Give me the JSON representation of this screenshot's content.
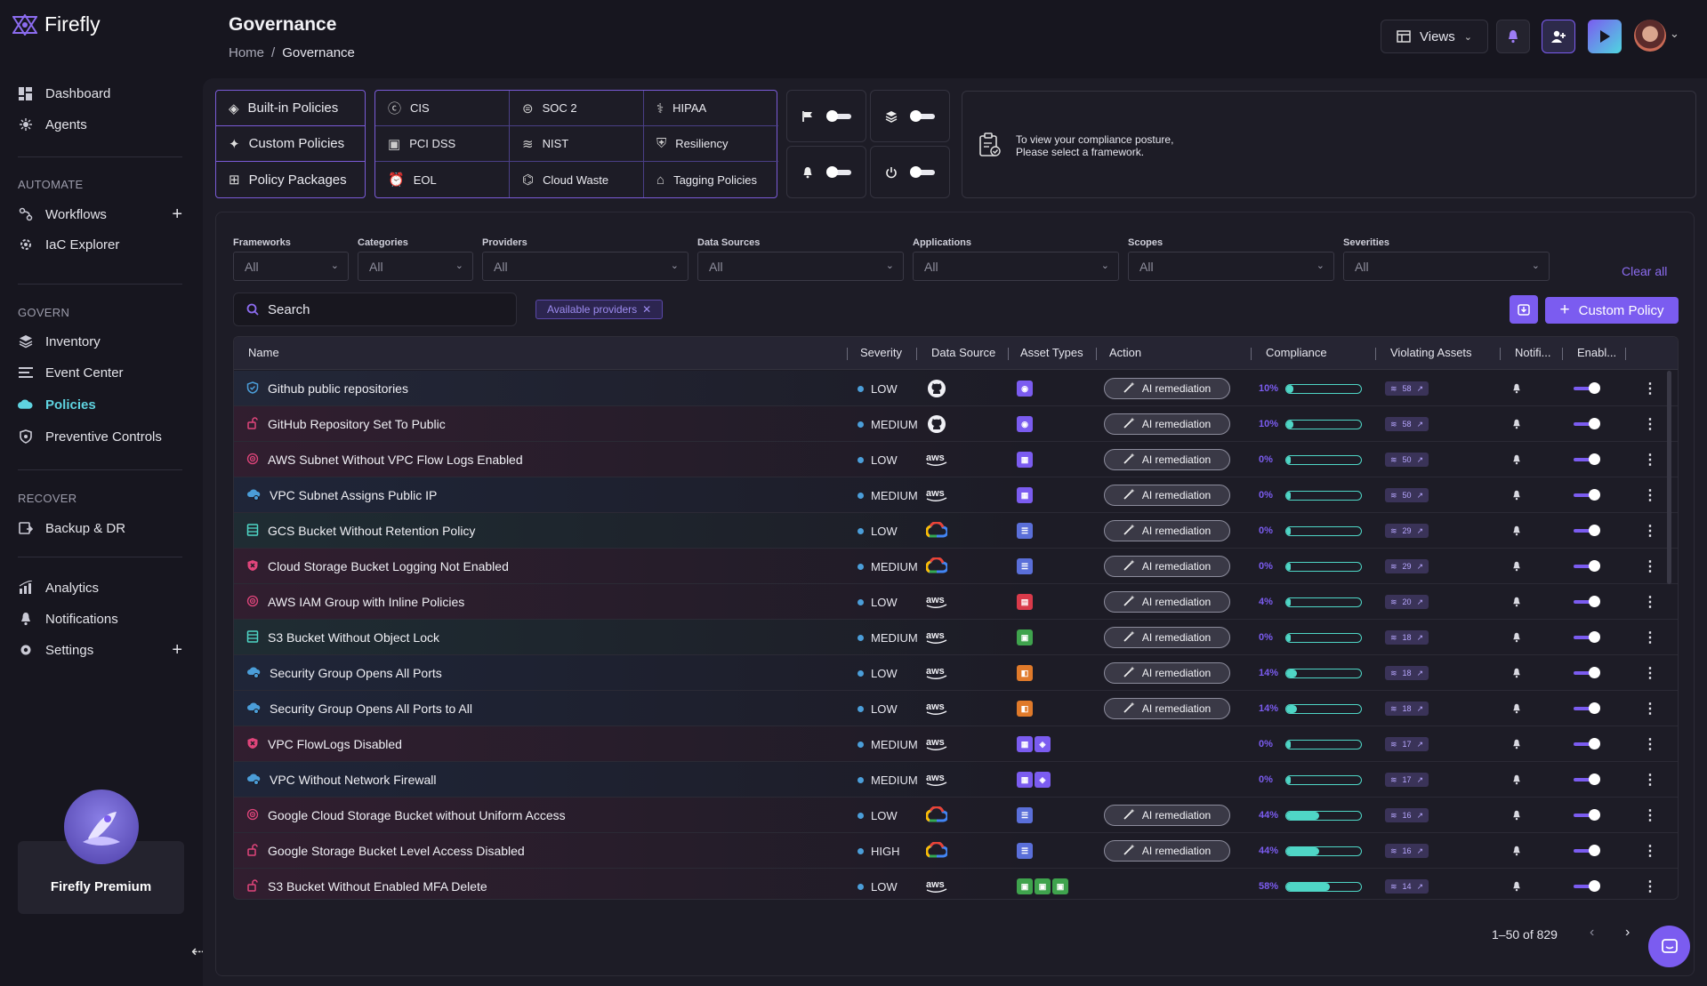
{
  "app": {
    "name": "Firefly"
  },
  "sidebar": {
    "top_items": [
      {
        "label": "Dashboard",
        "icon": "grid-icon"
      },
      {
        "label": "Agents",
        "icon": "agent-icon"
      }
    ],
    "sections": [
      {
        "label": "AUTOMATE",
        "items": [
          {
            "label": "Workflows",
            "icon": "workflow-icon",
            "plus": "+"
          },
          {
            "label": "IaC Explorer",
            "icon": "gear-icon"
          }
        ]
      },
      {
        "label": "GOVERN",
        "items": [
          {
            "label": "Inventory",
            "icon": "layers-icon"
          },
          {
            "label": "Event Center",
            "icon": "list-icon"
          },
          {
            "label": "Policies",
            "icon": "cloud-icon",
            "active": true
          },
          {
            "label": "Preventive Controls",
            "icon": "shield-icon"
          }
        ]
      },
      {
        "label": "RECOVER",
        "items": [
          {
            "label": "Backup & DR",
            "icon": "backup-icon"
          }
        ]
      }
    ],
    "bottom_items": [
      {
        "label": "Analytics",
        "icon": "chart-icon"
      },
      {
        "label": "Notifications",
        "icon": "bell-icon"
      },
      {
        "label": "Settings",
        "icon": "settings-icon",
        "plus": "+"
      }
    ],
    "premium_label": "Firefly Premium"
  },
  "header": {
    "title": "Governance",
    "breadcrumb": [
      "Home",
      "/",
      "Governance"
    ],
    "views_label": "Views"
  },
  "policy_types": [
    {
      "label": "Built-in Policies",
      "icon": "built-in-icon"
    },
    {
      "label": "Custom Policies",
      "icon": "custom-icon"
    },
    {
      "label": "Policy Packages",
      "icon": "package-icon"
    }
  ],
  "frameworks": [
    {
      "label": "CIS",
      "icon": "cis-icon"
    },
    {
      "label": "SOC 2",
      "icon": "soc2-icon"
    },
    {
      "label": "HIPAA",
      "icon": "hipaa-icon"
    },
    {
      "label": "PCI DSS",
      "icon": "pci-icon"
    },
    {
      "label": "NIST",
      "icon": "nist-icon"
    },
    {
      "label": "Resiliency",
      "icon": "resiliency-icon"
    },
    {
      "label": "EOL",
      "icon": "alarm-icon"
    },
    {
      "label": "Cloud Waste",
      "icon": "waste-icon"
    },
    {
      "label": "Tagging Policies",
      "icon": "tag-icon"
    }
  ],
  "compliance_message": [
    "To view your compliance posture,",
    "Please select a framework."
  ],
  "filters": [
    {
      "label": "Frameworks",
      "value": "All"
    },
    {
      "label": "Categories",
      "value": "All"
    },
    {
      "label": "Providers",
      "value": "All"
    },
    {
      "label": "Data Sources",
      "value": "All"
    },
    {
      "label": "Applications",
      "value": "All"
    },
    {
      "label": "Scopes",
      "value": "All"
    },
    {
      "label": "Severities",
      "value": "All"
    }
  ],
  "clear_all": "Clear all",
  "search_placeholder": "Search",
  "chip_label": "Available providers",
  "custom_policy_label": "Custom Policy",
  "columns": [
    "Name",
    "Severity",
    "Data Source",
    "Asset Types",
    "Action",
    "Compliance",
    "Violating Assets",
    "Notifi...",
    "Enabl..."
  ],
  "ai_label": "AI remediation",
  "rows": [
    {
      "name": "Github public repositories",
      "severity": "LOW",
      "source": "github",
      "assets": [
        {
          "c": "#7b5cf0",
          "t": "◉"
        }
      ],
      "ai": true,
      "compliance": "10%",
      "pct": 10,
      "violating": "58",
      "tint": "rgba(60,90,140,0.18)",
      "icon": "shield-check-icon",
      "iconColor": "#4b9ed9"
    },
    {
      "name": "GitHub Repository Set To Public",
      "severity": "MEDIUM",
      "source": "github",
      "assets": [
        {
          "c": "#7b5cf0",
          "t": "◉"
        }
      ],
      "ai": true,
      "compliance": "10%",
      "pct": 10,
      "violating": "58",
      "tint": "rgba(140,40,90,0.18)",
      "icon": "lock-open-icon",
      "iconColor": "#e0457b"
    },
    {
      "name": "AWS Subnet Without VPC Flow Logs Enabled",
      "severity": "LOW",
      "source": "aws",
      "assets": [
        {
          "c": "#7b5cf0",
          "t": "▦"
        }
      ],
      "ai": true,
      "compliance": "0%",
      "pct": 0,
      "violating": "50",
      "tint": "rgba(140,40,90,0.18)",
      "icon": "radar-icon",
      "iconColor": "#e0457b"
    },
    {
      "name": "VPC Subnet Assigns Public IP",
      "severity": "MEDIUM",
      "source": "aws",
      "assets": [
        {
          "c": "#7b5cf0",
          "t": "▦"
        }
      ],
      "ai": true,
      "compliance": "0%",
      "pct": 0,
      "violating": "50",
      "tint": "rgba(40,80,140,0.18)",
      "icon": "cloud-gear-icon",
      "iconColor": "#4b9ed9"
    },
    {
      "name": "GCS Bucket Without Retention Policy",
      "severity": "LOW",
      "source": "gcp",
      "assets": [
        {
          "c": "#5a6fd9",
          "t": "☰"
        }
      ],
      "ai": true,
      "compliance": "0%",
      "pct": 0,
      "violating": "29",
      "tint": "rgba(40,120,110,0.18)",
      "icon": "storage-icon",
      "iconColor": "#4fd6c6"
    },
    {
      "name": "Cloud Storage Bucket Logging Not Enabled",
      "severity": "MEDIUM",
      "source": "gcp",
      "assets": [
        {
          "c": "#5a6fd9",
          "t": "☰"
        }
      ],
      "ai": true,
      "compliance": "0%",
      "pct": 0,
      "violating": "29",
      "tint": "rgba(140,40,90,0.18)",
      "icon": "shield-x-icon",
      "iconColor": "#e0457b"
    },
    {
      "name": "AWS IAM Group with Inline Policies",
      "severity": "LOW",
      "source": "aws",
      "assets": [
        {
          "c": "#d93a4a",
          "t": "▤"
        }
      ],
      "ai": true,
      "compliance": "4%",
      "pct": 4,
      "violating": "20",
      "tint": "rgba(140,40,90,0.18)",
      "icon": "radar-icon",
      "iconColor": "#e0457b"
    },
    {
      "name": "S3 Bucket Without Object Lock",
      "severity": "MEDIUM",
      "source": "aws",
      "assets": [
        {
          "c": "#3fa34d",
          "t": "▣"
        }
      ],
      "ai": true,
      "compliance": "0%",
      "pct": 0,
      "violating": "18",
      "tint": "rgba(40,120,110,0.18)",
      "icon": "storage-icon",
      "iconColor": "#4fd6c6"
    },
    {
      "name": "Security Group Opens All Ports",
      "severity": "LOW",
      "source": "aws",
      "assets": [
        {
          "c": "#e07a2a",
          "t": "◧"
        }
      ],
      "ai": true,
      "compliance": "14%",
      "pct": 14,
      "violating": "18",
      "tint": "rgba(40,80,140,0.18)",
      "icon": "cloud-gear-icon",
      "iconColor": "#4b9ed9"
    },
    {
      "name": "Security Group Opens All Ports to All",
      "severity": "LOW",
      "source": "aws",
      "assets": [
        {
          "c": "#e07a2a",
          "t": "◧"
        }
      ],
      "ai": true,
      "compliance": "14%",
      "pct": 14,
      "violating": "18",
      "tint": "rgba(40,80,140,0.18)",
      "icon": "cloud-gear-icon",
      "iconColor": "#4b9ed9"
    },
    {
      "name": "VPC FlowLogs Disabled",
      "severity": "MEDIUM",
      "source": "aws",
      "assets": [
        {
          "c": "#7b5cf0",
          "t": "▦"
        },
        {
          "c": "#7b5cf0",
          "t": "◈"
        }
      ],
      "ai": false,
      "compliance": "0%",
      "pct": 0,
      "violating": "17",
      "tint": "rgba(140,40,90,0.18)",
      "icon": "shield-x-icon",
      "iconColor": "#e0457b"
    },
    {
      "name": "VPC Without Network Firewall",
      "severity": "MEDIUM",
      "source": "aws",
      "assets": [
        {
          "c": "#7b5cf0",
          "t": "▦"
        },
        {
          "c": "#7b5cf0",
          "t": "◈"
        }
      ],
      "ai": false,
      "compliance": "0%",
      "pct": 0,
      "violating": "17",
      "tint": "rgba(40,80,140,0.18)",
      "icon": "cloud-gear-icon",
      "iconColor": "#4b9ed9"
    },
    {
      "name": "Google Cloud Storage Bucket without Uniform Access",
      "severity": "LOW",
      "source": "gcp",
      "assets": [
        {
          "c": "#5a6fd9",
          "t": "☰"
        }
      ],
      "ai": true,
      "compliance": "44%",
      "pct": 44,
      "violating": "16",
      "tint": "rgba(140,40,90,0.18)",
      "icon": "radar-icon",
      "iconColor": "#e0457b"
    },
    {
      "name": "Google Storage Bucket Level Access Disabled",
      "severity": "HIGH",
      "source": "gcp",
      "assets": [
        {
          "c": "#5a6fd9",
          "t": "☰"
        }
      ],
      "ai": true,
      "compliance": "44%",
      "pct": 44,
      "violating": "16",
      "tint": "rgba(140,40,90,0.18)",
      "icon": "lock-open-icon",
      "iconColor": "#e0457b"
    },
    {
      "name": "S3 Bucket Without Enabled MFA Delete",
      "severity": "LOW",
      "source": "aws",
      "assets": [
        {
          "c": "#3fa34d",
          "t": "▣"
        },
        {
          "c": "#3fa34d",
          "t": "▣"
        },
        {
          "c": "#3fa34d",
          "t": "▣"
        }
      ],
      "ai": false,
      "compliance": "58%",
      "pct": 58,
      "violating": "14",
      "tint": "rgba(140,40,90,0.18)",
      "icon": "lock-open-icon",
      "iconColor": "#e0457b"
    }
  ],
  "pagination": {
    "range": "1–50 of 829"
  }
}
